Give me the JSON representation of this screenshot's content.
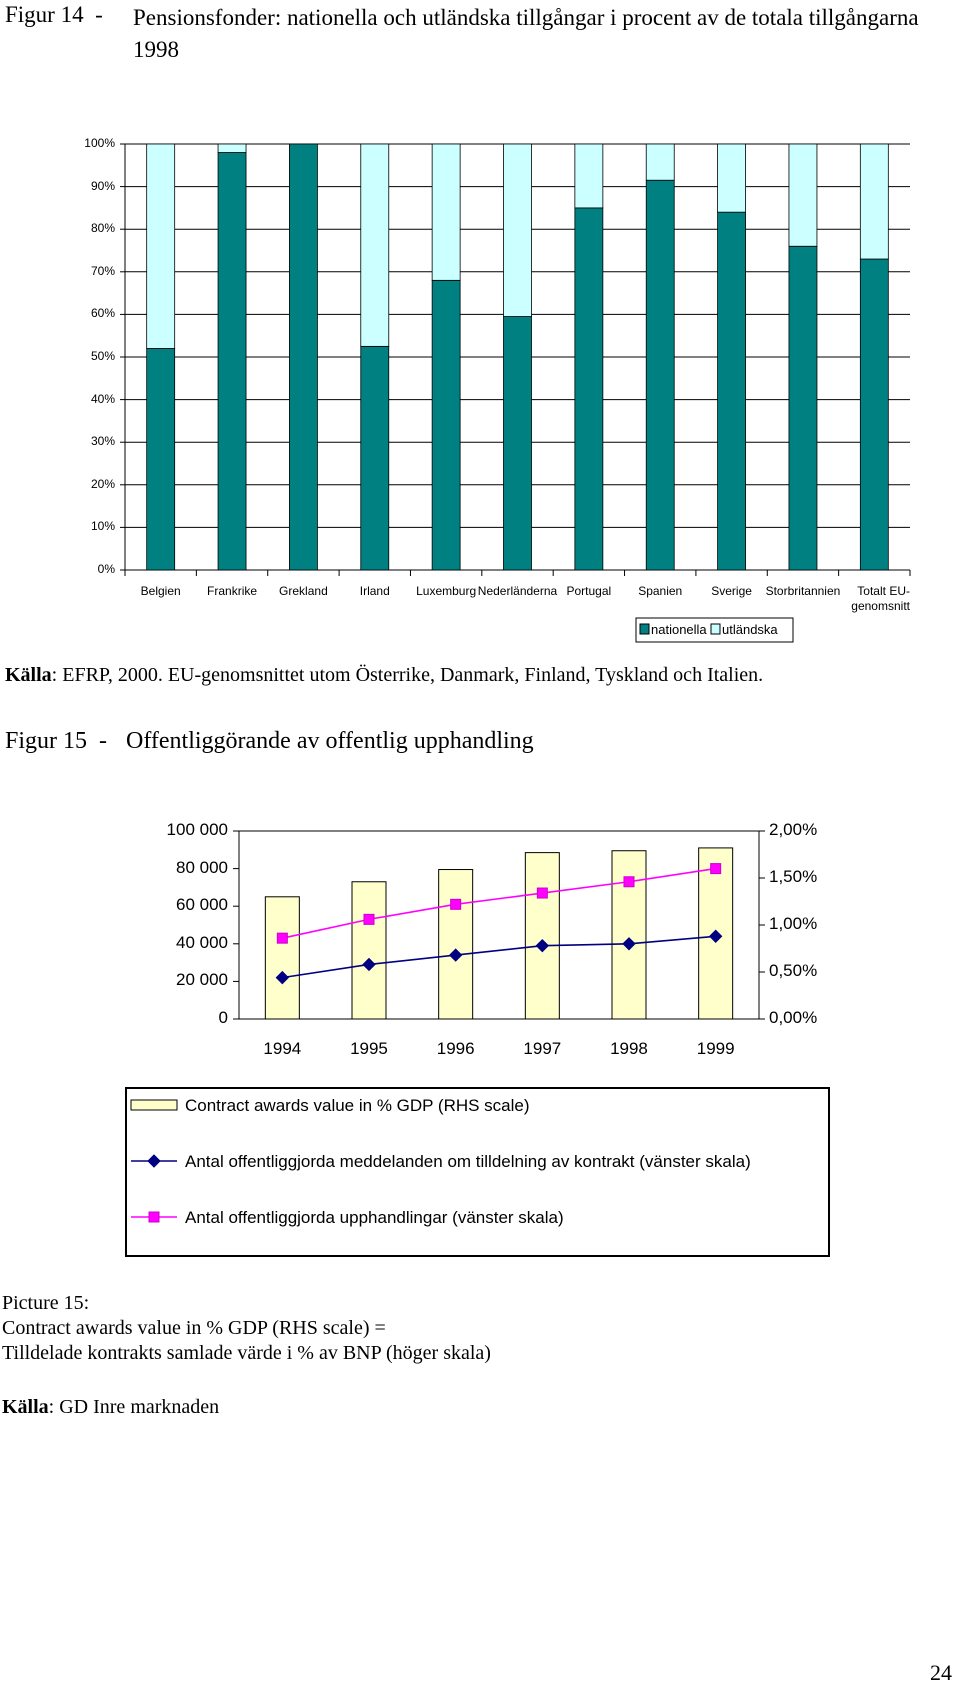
{
  "figure14": {
    "label": "Figur 14  -",
    "title": "Pensionsfonder: nationella och utländska tillgångar i procent av de totala tillgångarna 1998"
  },
  "chart_data": [
    {
      "type": "bar",
      "stacked": true,
      "categories": [
        "Belgien",
        "Frankrike",
        "Grekland",
        "Irland",
        "Luxemburg",
        "Nederländerna",
        "Portugal",
        "Spanien",
        "Sverige",
        "Storbritannien",
        "Totalt EU-genomsnitt"
      ],
      "series": [
        {
          "name": "nationella",
          "color": "#008080",
          "values": [
            52,
            98,
            100,
            52.5,
            68,
            59.5,
            85,
            91.5,
            84,
            76,
            73
          ]
        },
        {
          "name": "utländska",
          "color": "#ccffff",
          "values": [
            48,
            2,
            0,
            47.5,
            32,
            40.5,
            15,
            8.5,
            16,
            24,
            27
          ]
        }
      ],
      "ylim": [
        0,
        100
      ],
      "yticks": [
        {
          "value": 0,
          "label": "0%"
        },
        {
          "value": 10,
          "label": "10%"
        },
        {
          "value": 20,
          "label": "20%"
        },
        {
          "value": 30,
          "label": "30%"
        },
        {
          "value": 40,
          "label": "40%"
        },
        {
          "value": 50,
          "label": "50%"
        },
        {
          "value": 60,
          "label": "60%"
        },
        {
          "value": 70,
          "label": "70%"
        },
        {
          "value": 80,
          "label": "80%"
        },
        {
          "value": 90,
          "label": "90%"
        },
        {
          "value": 100,
          "label": "100%"
        }
      ],
      "grid": true,
      "legend": "bottom"
    },
    {
      "type": "combo",
      "categories": [
        "1994",
        "1995",
        "1996",
        "1997",
        "1998",
        "1999"
      ],
      "series": [
        {
          "name": "Contract awards value in % GDP (RHS scale)",
          "type": "bar",
          "axis": "y2",
          "color": "#ffffcc",
          "values": [
            1.3,
            1.46,
            1.59,
            1.77,
            1.79,
            1.82
          ]
        },
        {
          "name": "Antal offentliggjorda meddelanden om tilldelning av kontrakt (vänster skala)",
          "type": "line",
          "color": "#000080",
          "marker": "diamond",
          "values": [
            22000,
            29000,
            34000,
            39000,
            40000,
            44000
          ]
        },
        {
          "name": "Antal offentliggjorda upphandlingar (vänster skala)",
          "type": "line",
          "color": "#ff00ff",
          "marker": "square",
          "values": [
            43000,
            53000,
            61000,
            67000,
            73000,
            80000
          ]
        }
      ],
      "ylim": [
        0,
        100000
      ],
      "yticks": [
        0,
        {
          "value": 20000,
          "label": "20 000"
        },
        {
          "value": 40000,
          "label": "40 000"
        },
        {
          "value": 60000,
          "label": "60 000"
        },
        {
          "value": 80000,
          "label": "80 000"
        },
        {
          "value": 100000,
          "label": "100 000"
        }
      ],
      "y2lim": [
        0,
        2
      ],
      "y2ticks": [
        {
          "value": 0,
          "label": "0,00%"
        },
        {
          "value": 0.5,
          "label": "0,50%"
        },
        {
          "value": 1,
          "label": "1,00%"
        },
        {
          "value": 1.5,
          "label": "1,50%"
        },
        {
          "value": 2,
          "label": "2,00%"
        }
      ],
      "grid": false,
      "legend": "bottom"
    }
  ],
  "source14": {
    "label": "Källa",
    "text": ": EFRP, 2000. EU-genomsnittet utom Österrike, Danmark, Finland, Tyskland och Italien."
  },
  "figure15": {
    "label": "Figur 15  -",
    "title": "Offentliggörande av offentlig upphandling"
  },
  "notes": [
    "Picture 15:",
    "Contract awards value in % GDP (RHS scale) =",
    "Tilldelade kontrakts samlade värde i % av BNP (höger skala)"
  ],
  "source15": {
    "label": "Källa",
    "text": ": GD Inre marknaden"
  },
  "page_number": "24"
}
